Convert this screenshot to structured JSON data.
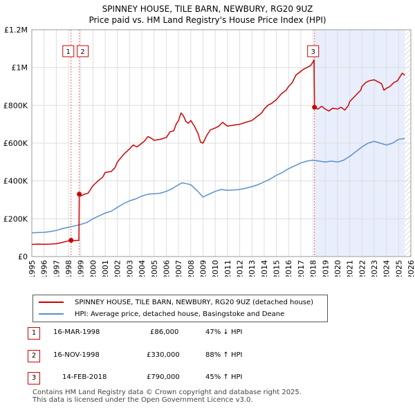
{
  "chart_data": {
    "type": "line",
    "title": "SPINNEY HOUSE, TILE BARN, NEWBURY, RG20 9UZ",
    "subtitle": "Price paid vs. HM Land Registry's House Price Index (HPI)",
    "x_range": [
      1995,
      2026
    ],
    "y_range": [
      0,
      1200000
    ],
    "x_ticks": [
      "1995",
      "1996",
      "1997",
      "1998",
      "1999",
      "2000",
      "2001",
      "2002",
      "2003",
      "2004",
      "2005",
      "2006",
      "2007",
      "2008",
      "2009",
      "2010",
      "2011",
      "2012",
      "2013",
      "2014",
      "2015",
      "2016",
      "2017",
      "2018",
      "2019",
      "2020",
      "2021",
      "2022",
      "2023",
      "2024",
      "2025",
      "2026"
    ],
    "y_ticks": [
      {
        "value": 0,
        "label": "£0"
      },
      {
        "value": 200000,
        "label": "£200K"
      },
      {
        "value": 400000,
        "label": "£400K"
      },
      {
        "value": 600000,
        "label": "£600K"
      },
      {
        "value": 800000,
        "label": "£800K"
      },
      {
        "value": 1000000,
        "label": "£1M"
      },
      {
        "value": 1200000,
        "label": "£1.2M"
      }
    ],
    "grid": true,
    "shaded_span": [
      2018.12,
      2025.5
    ],
    "hatched_from": 2025.5,
    "series": [
      {
        "name": "SPINNEY HOUSE, TILE BARN, NEWBURY, RG20 9UZ (detached house)",
        "color": "#cc0000",
        "points": [
          [
            1995.0,
            64000
          ],
          [
            1995.5,
            66000
          ],
          [
            1996.0,
            65000
          ],
          [
            1996.5,
            66000
          ],
          [
            1997.0,
            68000
          ],
          [
            1997.5,
            75000
          ],
          [
            1998.0,
            83000
          ],
          [
            1998.2,
            86000
          ],
          [
            1998.5,
            85000
          ],
          [
            1998.85,
            86000
          ],
          [
            1998.88,
            330000
          ],
          [
            1999.0,
            320000
          ],
          [
            1999.3,
            330000
          ],
          [
            1999.6,
            335000
          ],
          [
            2000.0,
            375000
          ],
          [
            2000.5,
            405000
          ],
          [
            2000.8,
            420000
          ],
          [
            2001.0,
            445000
          ],
          [
            2001.5,
            450000
          ],
          [
            2001.8,
            470000
          ],
          [
            2002.0,
            500000
          ],
          [
            2002.5,
            540000
          ],
          [
            2003.0,
            570000
          ],
          [
            2003.3,
            590000
          ],
          [
            2003.6,
            580000
          ],
          [
            2004.0,
            600000
          ],
          [
            2004.2,
            610000
          ],
          [
            2004.5,
            635000
          ],
          [
            2004.8,
            625000
          ],
          [
            2005.0,
            615000
          ],
          [
            2005.5,
            620000
          ],
          [
            2006.0,
            630000
          ],
          [
            2006.3,
            660000
          ],
          [
            2006.6,
            665000
          ],
          [
            2006.8,
            700000
          ],
          [
            2007.0,
            720000
          ],
          [
            2007.2,
            760000
          ],
          [
            2007.4,
            745000
          ],
          [
            2007.6,
            715000
          ],
          [
            2007.8,
            705000
          ],
          [
            2008.0,
            720000
          ],
          [
            2008.3,
            690000
          ],
          [
            2008.6,
            650000
          ],
          [
            2008.8,
            605000
          ],
          [
            2009.0,
            600000
          ],
          [
            2009.3,
            640000
          ],
          [
            2009.6,
            670000
          ],
          [
            2010.0,
            680000
          ],
          [
            2010.3,
            690000
          ],
          [
            2010.6,
            710000
          ],
          [
            2011.0,
            690000
          ],
          [
            2011.5,
            695000
          ],
          [
            2012.0,
            700000
          ],
          [
            2012.5,
            710000
          ],
          [
            2013.0,
            720000
          ],
          [
            2013.5,
            745000
          ],
          [
            2013.8,
            760000
          ],
          [
            2014.0,
            780000
          ],
          [
            2014.3,
            800000
          ],
          [
            2014.6,
            810000
          ],
          [
            2015.0,
            830000
          ],
          [
            2015.4,
            860000
          ],
          [
            2015.8,
            880000
          ],
          [
            2016.0,
            900000
          ],
          [
            2016.3,
            920000
          ],
          [
            2016.6,
            960000
          ],
          [
            2016.9,
            975000
          ],
          [
            2017.2,
            990000
          ],
          [
            2017.5,
            1000000
          ],
          [
            2017.8,
            1010000
          ],
          [
            2018.0,
            1030000
          ],
          [
            2018.08,
            1040000
          ],
          [
            2018.12,
            790000
          ],
          [
            2018.4,
            780000
          ],
          [
            2018.7,
            795000
          ],
          [
            2019.0,
            780000
          ],
          [
            2019.3,
            770000
          ],
          [
            2019.6,
            785000
          ],
          [
            2020.0,
            780000
          ],
          [
            2020.3,
            790000
          ],
          [
            2020.6,
            775000
          ],
          [
            2020.9,
            800000
          ],
          [
            2021.0,
            820000
          ],
          [
            2021.3,
            840000
          ],
          [
            2021.6,
            860000
          ],
          [
            2021.9,
            880000
          ],
          [
            2022.0,
            900000
          ],
          [
            2022.3,
            920000
          ],
          [
            2022.6,
            930000
          ],
          [
            2023.0,
            935000
          ],
          [
            2023.3,
            925000
          ],
          [
            2023.6,
            915000
          ],
          [
            2023.8,
            880000
          ],
          [
            2024.0,
            890000
          ],
          [
            2024.3,
            900000
          ],
          [
            2024.6,
            920000
          ],
          [
            2024.9,
            930000
          ],
          [
            2025.1,
            950000
          ],
          [
            2025.3,
            970000
          ],
          [
            2025.5,
            960000
          ]
        ]
      },
      {
        "name": "HPI: Average price, detached house, Basingstoke and Deane",
        "color": "#5b8fcf",
        "points": [
          [
            1995.0,
            125000
          ],
          [
            1995.5,
            127000
          ],
          [
            1996.0,
            128000
          ],
          [
            1996.5,
            132000
          ],
          [
            1997.0,
            138000
          ],
          [
            1997.5,
            148000
          ],
          [
            1998.0,
            155000
          ],
          [
            1998.5,
            162000
          ],
          [
            1999.0,
            170000
          ],
          [
            1999.5,
            180000
          ],
          [
            2000.0,
            200000
          ],
          [
            2000.5,
            215000
          ],
          [
            2001.0,
            230000
          ],
          [
            2001.5,
            240000
          ],
          [
            2002.0,
            260000
          ],
          [
            2002.5,
            280000
          ],
          [
            2003.0,
            295000
          ],
          [
            2003.5,
            305000
          ],
          [
            2004.0,
            320000
          ],
          [
            2004.5,
            330000
          ],
          [
            2005.0,
            332000
          ],
          [
            2005.5,
            335000
          ],
          [
            2006.0,
            345000
          ],
          [
            2006.5,
            360000
          ],
          [
            2007.0,
            380000
          ],
          [
            2007.3,
            390000
          ],
          [
            2007.7,
            385000
          ],
          [
            2008.0,
            380000
          ],
          [
            2008.5,
            350000
          ],
          [
            2009.0,
            315000
          ],
          [
            2009.5,
            330000
          ],
          [
            2010.0,
            345000
          ],
          [
            2010.5,
            355000
          ],
          [
            2011.0,
            350000
          ],
          [
            2011.5,
            352000
          ],
          [
            2012.0,
            355000
          ],
          [
            2012.5,
            362000
          ],
          [
            2013.0,
            370000
          ],
          [
            2013.5,
            380000
          ],
          [
            2014.0,
            395000
          ],
          [
            2014.5,
            410000
          ],
          [
            2015.0,
            430000
          ],
          [
            2015.5,
            445000
          ],
          [
            2016.0,
            465000
          ],
          [
            2016.5,
            480000
          ],
          [
            2017.0,
            495000
          ],
          [
            2017.5,
            505000
          ],
          [
            2018.0,
            510000
          ],
          [
            2018.5,
            505000
          ],
          [
            2019.0,
            500000
          ],
          [
            2019.5,
            505000
          ],
          [
            2020.0,
            500000
          ],
          [
            2020.5,
            510000
          ],
          [
            2021.0,
            530000
          ],
          [
            2021.5,
            555000
          ],
          [
            2022.0,
            580000
          ],
          [
            2022.5,
            600000
          ],
          [
            2023.0,
            610000
          ],
          [
            2023.5,
            600000
          ],
          [
            2024.0,
            590000
          ],
          [
            2024.5,
            600000
          ],
          [
            2025.0,
            620000
          ],
          [
            2025.5,
            625000
          ]
        ]
      }
    ],
    "sales": [
      {
        "id": "1",
        "x": 1998.21,
        "price": 86000
      },
      {
        "id": "2",
        "x": 1998.88,
        "price": 330000
      },
      {
        "id": "3",
        "x": 2018.12,
        "price": 790000
      }
    ]
  },
  "legend": {
    "property_label": "SPINNEY HOUSE, TILE BARN, NEWBURY, RG20 9UZ (detached house)",
    "hpi_label": "HPI: Average price, detached house, Basingstoke and Deane"
  },
  "transactions": [
    {
      "num": "1",
      "date": "16-MAR-1998",
      "price": "£86,000",
      "hpi": "47% ↓ HPI"
    },
    {
      "num": "2",
      "date": "16-NOV-1998",
      "price": "£330,000",
      "hpi": "88% ↑ HPI"
    },
    {
      "num": "3",
      "date": "14-FEB-2018",
      "price": "£790,000",
      "hpi": "45% ↑ HPI"
    }
  ],
  "footer": {
    "line1": "Contains HM Land Registry data © Crown copyright and database right 2025.",
    "line2": "This data is licensed under the Open Government Licence v3.0."
  },
  "colors": {
    "property": "#cc0000",
    "hpi": "#5b8fcf",
    "shade": "#e8eefc",
    "grid": "#dddddd"
  }
}
